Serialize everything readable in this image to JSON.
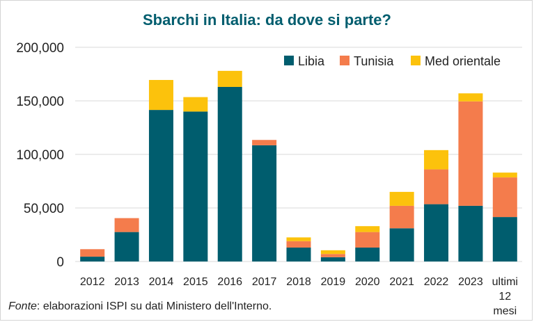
{
  "chart_data": {
    "type": "bar",
    "stacked": true,
    "title": "Sbarchi in Italia: da dove si parte?",
    "categories": [
      "2012",
      "2013",
      "2014",
      "2015",
      "2016",
      "2017",
      "2018",
      "2019",
      "2020",
      "2021",
      "2022",
      "2023",
      "ultimi 12 mesi"
    ],
    "series": [
      {
        "name": "Libia",
        "color": "#005d6e",
        "values": [
          4500,
          27500,
          141500,
          140000,
          163000,
          108500,
          13000,
          4000,
          13000,
          31000,
          53500,
          52000,
          41500
        ]
      },
      {
        "name": "Tunisia",
        "color": "#f47c4c",
        "values": [
          7000,
          13000,
          0,
          0,
          0,
          5000,
          6000,
          3000,
          14500,
          21000,
          32500,
          97500,
          37000
        ]
      },
      {
        "name": "Med orientale",
        "color": "#fcc20c",
        "values": [
          0,
          0,
          28000,
          13500,
          15000,
          0,
          3500,
          3500,
          5500,
          13000,
          18000,
          7500,
          4500
        ]
      }
    ],
    "yticks": [
      "0",
      "50,000",
      "100,000",
      "150,000",
      "200,000"
    ],
    "ylim": [
      0,
      200000
    ],
    "grid": true,
    "legend_position": "top-right"
  },
  "footer": {
    "source_label": "Fonte",
    "source_text": ": elaborazioni ISPI su dati Ministero dell'Interno."
  }
}
